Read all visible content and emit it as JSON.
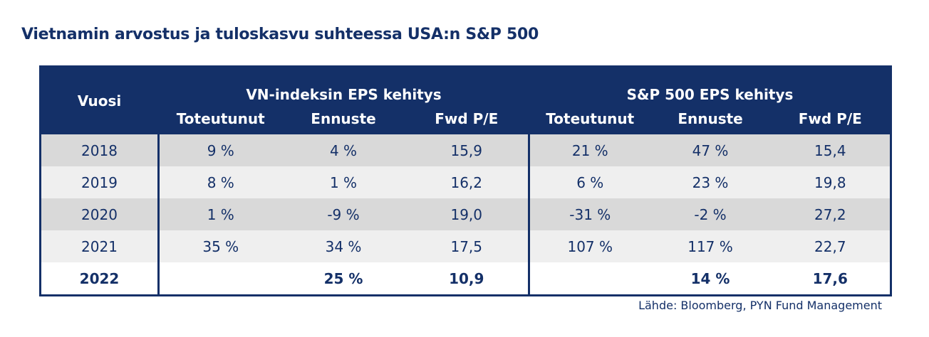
{
  "title": "Vietnamin arvostus ja tuloskasvu suhteessa USA:n S&P 500",
  "header": {
    "year": "Vuosi",
    "group_vn": "VN-indeksin EPS kehitys",
    "group_sp": "S&P 500 EPS kehitys",
    "columns": [
      "Toteutunut",
      "Ennuste",
      "Fwd P/E",
      "Toteutunut",
      "Ennuste",
      "Fwd P/E"
    ]
  },
  "rows": [
    [
      "2018",
      "9 %",
      "4 %",
      "15,9",
      "21 %",
      "47 %",
      "15,4"
    ],
    [
      "2019",
      "8 %",
      "1 %",
      "16,2",
      "6 %",
      "23 %",
      "19,8"
    ],
    [
      "2020",
      "1 %",
      "-9 %",
      "19,0",
      "-31 %",
      "-2 %",
      "27,2"
    ],
    [
      "2021",
      "35 %",
      "34 %",
      "17,5",
      "107 %",
      "117 %",
      "22,7"
    ],
    [
      "2022",
      "",
      "25 %",
      "10,9",
      "",
      "14 %",
      "17,6"
    ]
  ],
  "source": "Lähde: Bloomberg, PYN Fund Management",
  "colors": {
    "header_bg": "#143068",
    "row_odd": "#d9d9d9",
    "row_even": "#efefef"
  }
}
